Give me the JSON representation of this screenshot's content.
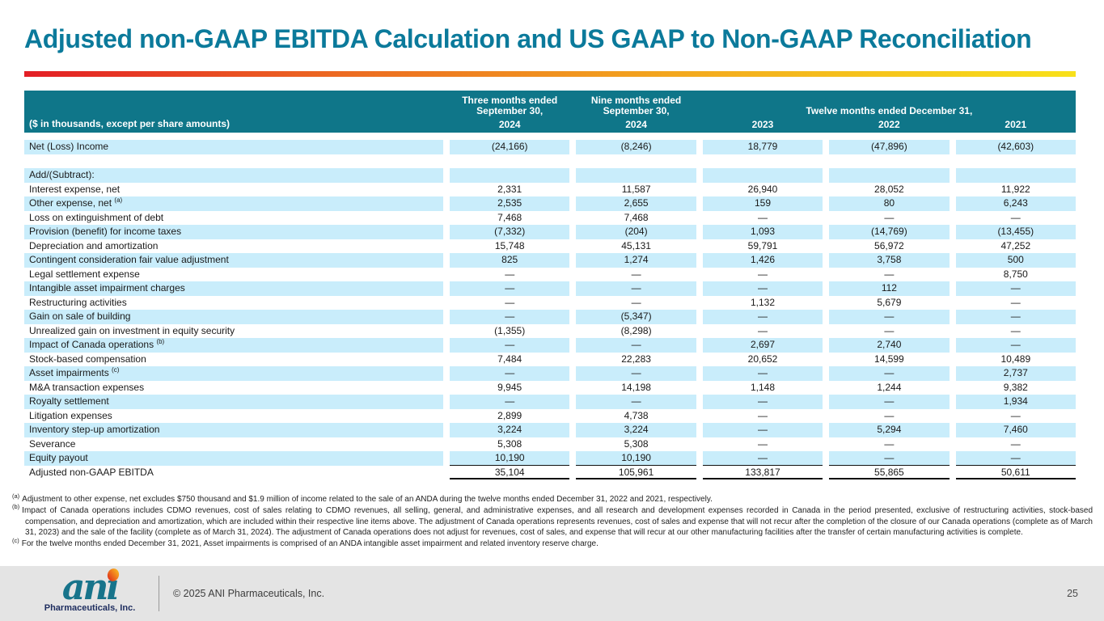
{
  "slide": {
    "title": "Adjusted non-GAAP EBITDA Calculation and US GAAP to Non-GAAP Reconciliation"
  },
  "colors": {
    "title_teal": "#0b7a9b",
    "header_teal": "#0f7689",
    "row_shade_blue": "#c9edfb",
    "accent_gradient": [
      "#e31e25",
      "#ec6a21",
      "#f3a81e",
      "#f8e11a"
    ],
    "footer_gray": "#e4e4e4",
    "logo_teal": "#17748b",
    "logo_dot_orange": "#f07c1d"
  },
  "table": {
    "corner_label": "($ in thousands, except per share amounts)",
    "col_groups": [
      {
        "title_lines": [
          "Three months ended",
          "September 30,"
        ],
        "years": [
          "2024"
        ]
      },
      {
        "title_lines": [
          "Nine months ended",
          "September 30,"
        ],
        "years": [
          "2024"
        ]
      },
      {
        "title": "Twelve months ended December 31,",
        "years": [
          "2023",
          "2022",
          "2021"
        ]
      }
    ],
    "rows": [
      {
        "label": "Net (Loss) Income",
        "sup": "",
        "values": [
          "(24,166)",
          "(8,246)",
          "18,779",
          "(47,896)",
          "(42,603)"
        ],
        "shade": true
      },
      {
        "label": "",
        "sup": "",
        "values": [
          "",
          "",
          "",
          "",
          ""
        ],
        "shade": false
      },
      {
        "label": "Add/(Subtract):",
        "sup": "",
        "values": [
          "",
          "",
          "",
          "",
          ""
        ],
        "shade": true
      },
      {
        "label": "Interest expense, net",
        "sup": "",
        "values": [
          "2,331",
          "11,587",
          "26,940",
          "28,052",
          "11,922"
        ],
        "shade": false
      },
      {
        "label": "Other expense, net ",
        "sup": "(a)",
        "values": [
          "2,535",
          "2,655",
          "159",
          "80",
          "6,243"
        ],
        "shade": true
      },
      {
        "label": "Loss on extinguishment of debt",
        "sup": "",
        "values": [
          "7,468",
          "7,468",
          "—",
          "—",
          "—"
        ],
        "shade": false
      },
      {
        "label": "Provision (benefit) for income taxes",
        "sup": "",
        "values": [
          "(7,332)",
          "(204)",
          "1,093",
          "(14,769)",
          "(13,455)"
        ],
        "shade": true
      },
      {
        "label": "Depreciation and amortization",
        "sup": "",
        "values": [
          "15,748",
          "45,131",
          "59,791",
          "56,972",
          "47,252"
        ],
        "shade": false
      },
      {
        "label": "Contingent consideration fair value adjustment",
        "sup": "",
        "values": [
          "825",
          "1,274",
          "1,426",
          "3,758",
          "500"
        ],
        "shade": true
      },
      {
        "label": "Legal settlement expense",
        "sup": "",
        "values": [
          "—",
          "—",
          "—",
          "—",
          "8,750"
        ],
        "shade": false
      },
      {
        "label": "Intangible asset impairment charges",
        "sup": "",
        "values": [
          "—",
          "—",
          "—",
          "112",
          "—"
        ],
        "shade": true
      },
      {
        "label": "Restructuring activities",
        "sup": "",
        "values": [
          "—",
          "—",
          "1,132",
          "5,679",
          "—"
        ],
        "shade": false
      },
      {
        "label": "Gain on sale of building",
        "sup": "",
        "values": [
          "—",
          "(5,347)",
          "—",
          "—",
          "—"
        ],
        "shade": true
      },
      {
        "label": "Unrealized gain on investment in equity security",
        "sup": "",
        "values": [
          "(1,355)",
          "(8,298)",
          "—",
          "—",
          "—"
        ],
        "shade": false
      },
      {
        "label": "Impact of Canada operations ",
        "sup": "(b)",
        "values": [
          "—",
          "—",
          "2,697",
          "2,740",
          "—"
        ],
        "shade": true
      },
      {
        "label": "Stock-based compensation",
        "sup": "",
        "values": [
          "7,484",
          "22,283",
          "20,652",
          "14,599",
          "10,489"
        ],
        "shade": false
      },
      {
        "label": "Asset impairments ",
        "sup": "(c)",
        "values": [
          "—",
          "—",
          "—",
          "—",
          "2,737"
        ],
        "shade": true
      },
      {
        "label": "M&A transaction expenses",
        "sup": "",
        "values": [
          "9,945",
          "14,198",
          "1,148",
          "1,244",
          "9,382"
        ],
        "shade": false
      },
      {
        "label": "Royalty settlement",
        "sup": "",
        "values": [
          "—",
          "—",
          "—",
          "—",
          "1,934"
        ],
        "shade": true
      },
      {
        "label": "Litigation expenses",
        "sup": "",
        "values": [
          "2,899",
          "4,738",
          "—",
          "—",
          "—"
        ],
        "shade": false
      },
      {
        "label": "Inventory step-up amortization",
        "sup": "",
        "values": [
          "3,224",
          "3,224",
          "—",
          "5,294",
          "7,460"
        ],
        "shade": true
      },
      {
        "label": "Severance",
        "sup": "",
        "values": [
          "5,308",
          "5,308",
          "—",
          "—",
          "—"
        ],
        "shade": false
      },
      {
        "label": "Equity payout",
        "sup": "",
        "values": [
          "10,190",
          "10,190",
          "—",
          "—",
          "—"
        ],
        "shade": true,
        "rule": 1
      },
      {
        "label": "Adjusted non-GAAP EBITDA",
        "sup": "",
        "values": [
          "35,104",
          "105,961",
          "133,817",
          "55,865",
          "50,611"
        ],
        "shade": false,
        "rule": 2
      }
    ]
  },
  "footnotes": [
    {
      "marker": "(a)",
      "text": "Adjustment to other expense, net excludes $750 thousand and $1.9 million of income related to the sale of an ANDA during the twelve months ended December 31, 2022 and 2021, respectively."
    },
    {
      "marker": "(b)",
      "text": "Impact of Canada operations includes CDMO revenues, cost of sales relating to CDMO revenues, all selling, general, and administrative expenses, and all research and development expenses recorded in Canada in the period presented, exclusive of restructuring activities, stock-based compensation, and depreciation and amortization, which are included within their respective line items above. The adjustment of Canada operations represents revenues, cost of sales and expense that will not recur after the completion of the closure of our Canada operations (complete as of March 31, 2023) and the sale of the facility (complete as of March 31, 2024). The adjustment of Canada operations does not adjust for revenues, cost of sales, and expense that will recur at our other manufacturing facilities after the transfer of certain manufacturing activities is complete."
    },
    {
      "marker": "(c)",
      "text": "For the twelve months ended December 31, 2021, Asset impairments is comprised of an ANDA intangible asset impairment and related inventory reserve charge."
    }
  ],
  "footer": {
    "logo_text": "ani",
    "logo_sub": "Pharmaceuticals, Inc.",
    "copyright": "© 2025 ANI Pharmaceuticals, Inc.",
    "page_number": "25"
  }
}
